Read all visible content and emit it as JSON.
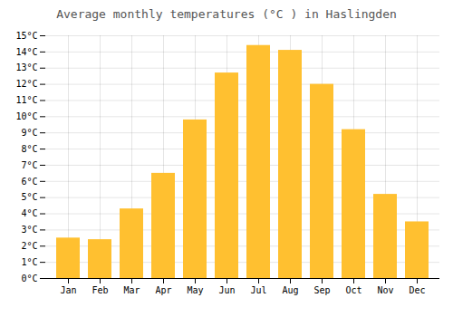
{
  "chart_data": {
    "type": "bar",
    "title": "Average monthly temperatures (°C ) in Haslingden",
    "categories": [
      "Jan",
      "Feb",
      "Mar",
      "Apr",
      "May",
      "Jun",
      "Jul",
      "Aug",
      "Sep",
      "Oct",
      "Nov",
      "Dec"
    ],
    "values": [
      2.5,
      2.4,
      4.3,
      6.5,
      9.8,
      12.7,
      14.4,
      14.1,
      12.0,
      9.2,
      5.2,
      3.5
    ],
    "color": "#FFC030",
    "ylim": [
      0,
      15
    ],
    "yticks": [
      {
        "value": 0,
        "label": "0°C"
      },
      {
        "value": 1,
        "label": "1°C"
      },
      {
        "value": 2,
        "label": "2°C"
      },
      {
        "value": 3,
        "label": "3°C"
      },
      {
        "value": 4,
        "label": "4°C"
      },
      {
        "value": 5,
        "label": "5°C"
      },
      {
        "value": 6,
        "label": "6°C"
      },
      {
        "value": 7,
        "label": "7°C"
      },
      {
        "value": 8,
        "label": "8°C"
      },
      {
        "value": 9,
        "label": "9°C"
      },
      {
        "value": 10,
        "label": "10°C"
      },
      {
        "value": 11,
        "label": "11°C"
      },
      {
        "value": 12,
        "label": "12°C"
      },
      {
        "value": 13,
        "label": "13°C"
      },
      {
        "value": 14,
        "label": "14°C"
      },
      {
        "value": 15,
        "label": "15°C"
      }
    ],
    "grid": true
  }
}
